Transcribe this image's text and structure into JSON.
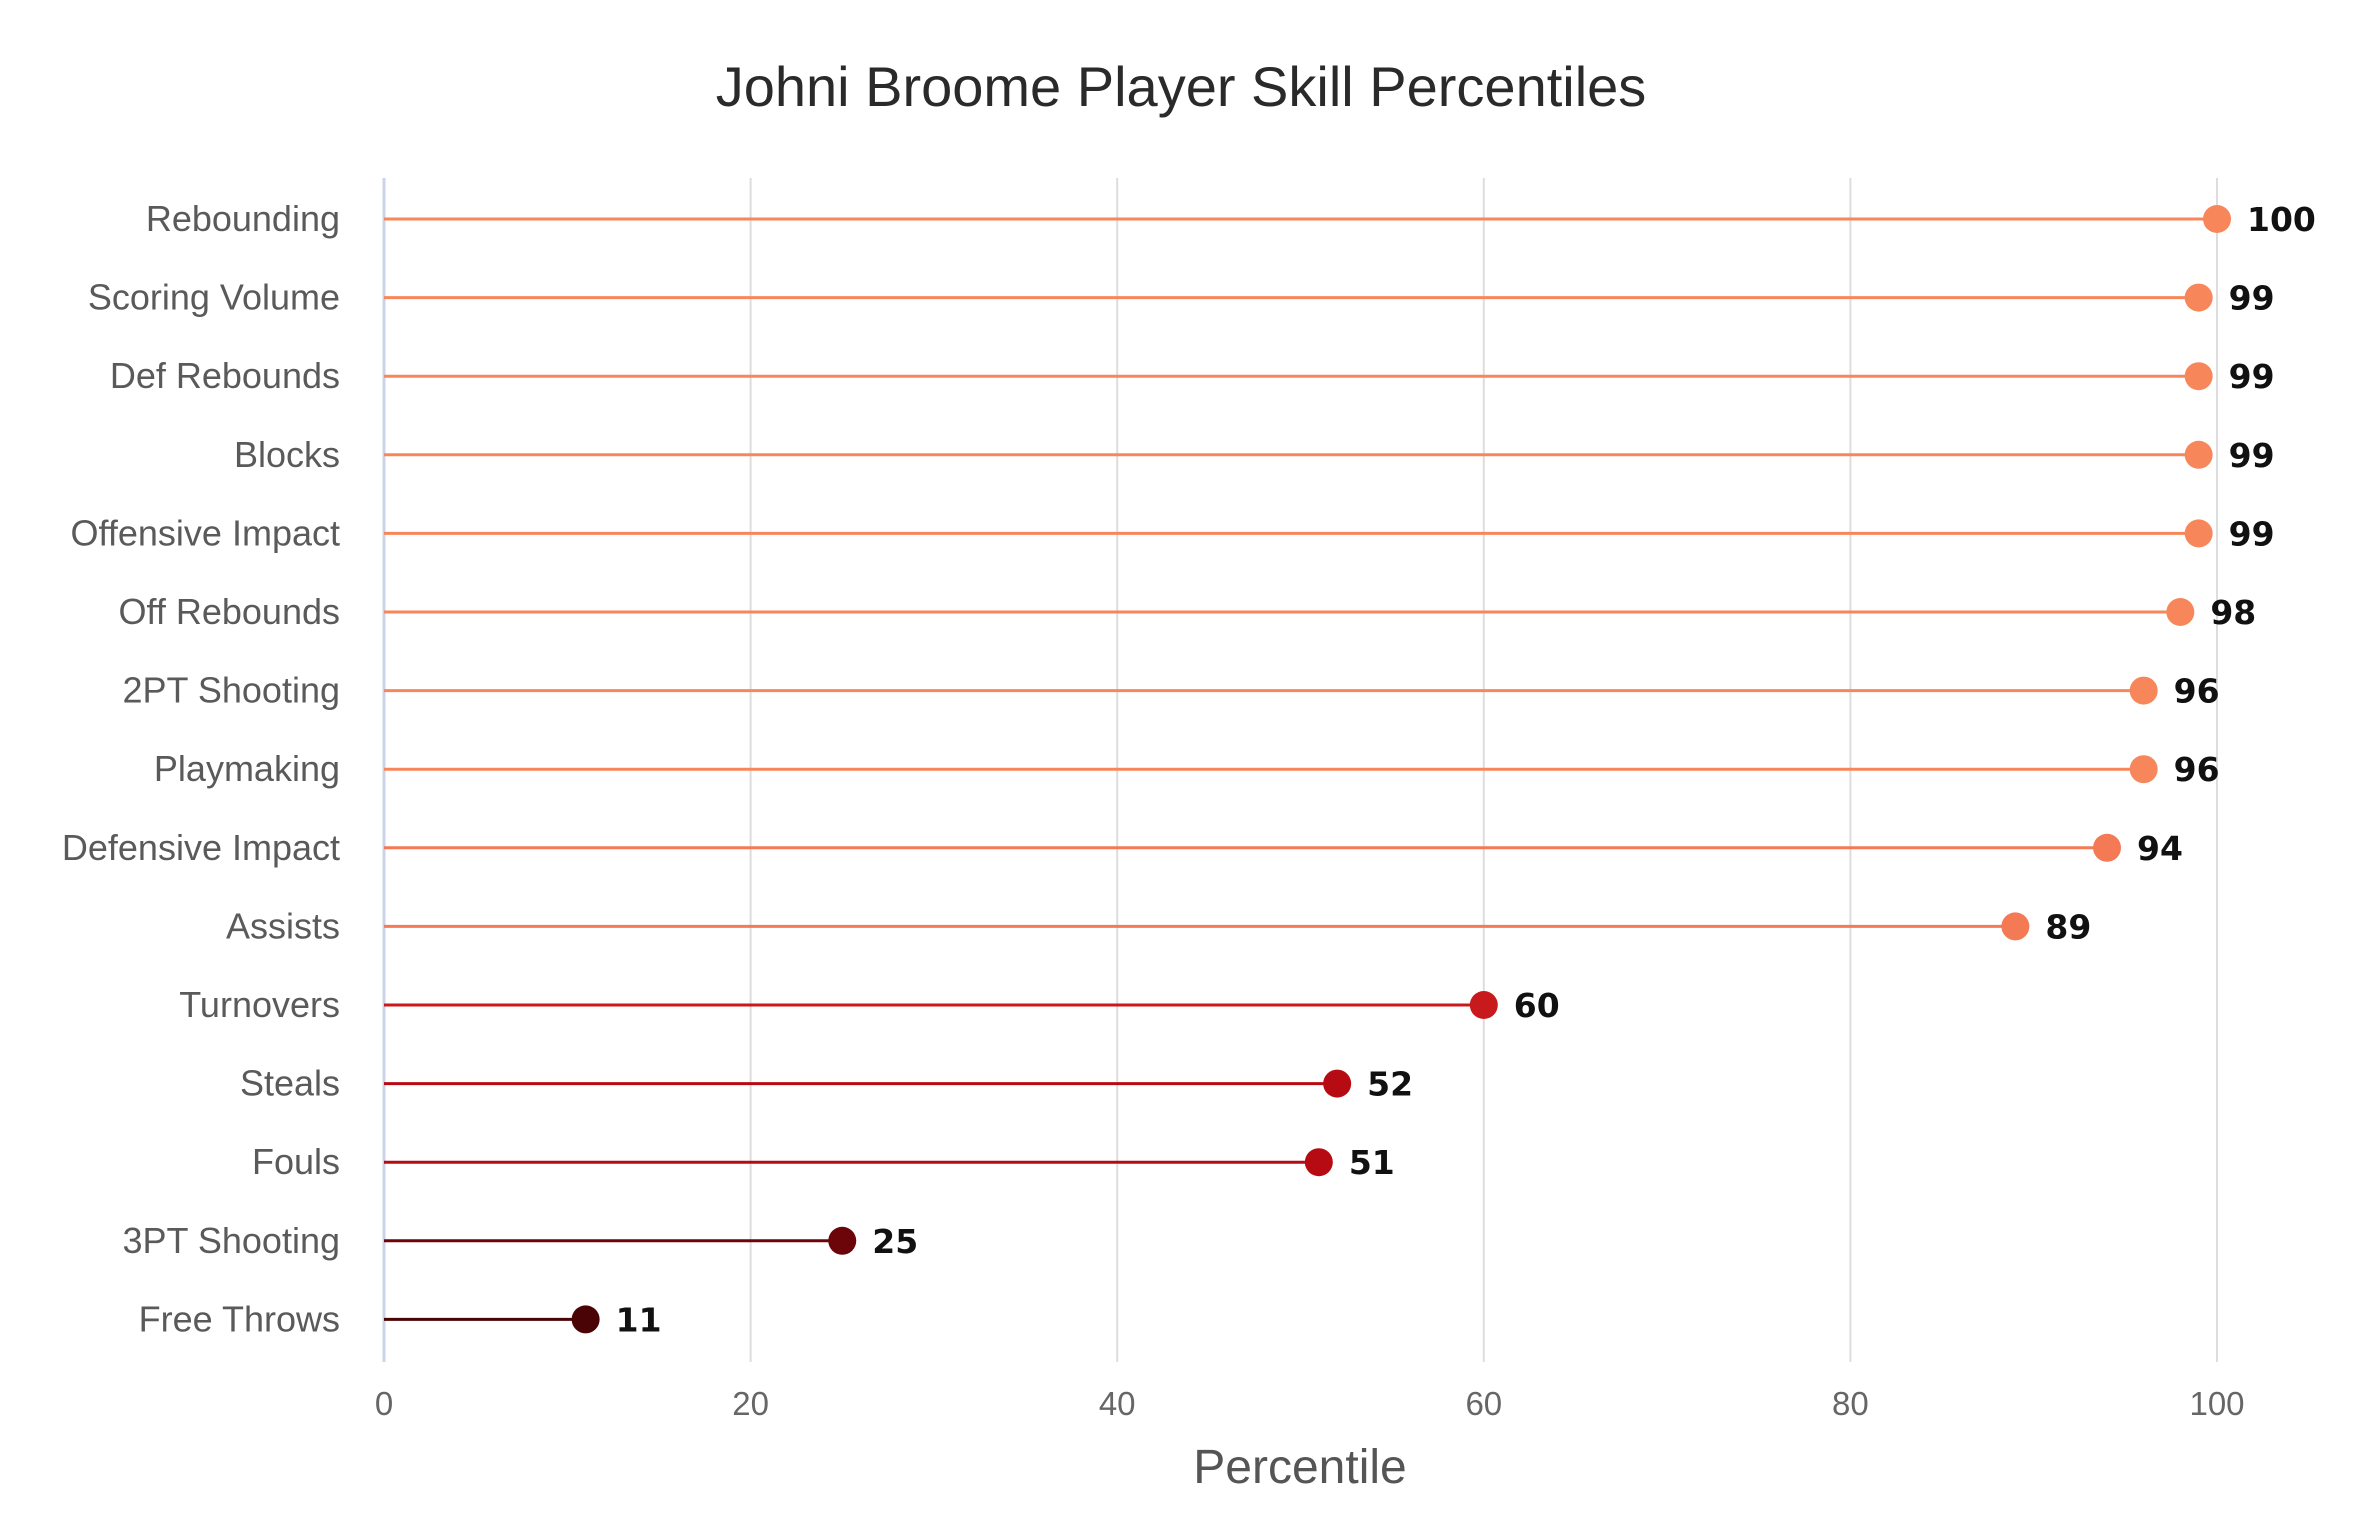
{
  "chart_data": {
    "type": "lollipop",
    "title": "Johni Broome Player Skill Percentiles",
    "xlabel": "Percentile",
    "ylabel": "",
    "xlim": [
      0,
      100
    ],
    "xticks": [
      0,
      20,
      40,
      60,
      80,
      100
    ],
    "grid": "vertical",
    "legend": "none",
    "categories": [
      "Rebounding",
      "Scoring Volume",
      "Def Rebounds",
      "Blocks",
      "Offensive Impact",
      "Off Rebounds",
      "2PT Shooting",
      "Playmaking",
      "Defensive Impact",
      "Assists",
      "Turnovers",
      "Steals",
      "Fouls",
      "3PT Shooting",
      "Free Throws"
    ],
    "values": [
      100,
      99,
      99,
      99,
      99,
      98,
      96,
      96,
      94,
      89,
      60,
      52,
      51,
      25,
      11
    ],
    "colors": [
      "#f7875a",
      "#f7875a",
      "#f7875a",
      "#f7875a",
      "#f7875a",
      "#f7875a",
      "#f7875a",
      "#f7875a",
      "#f47a55",
      "#f47a55",
      "#c8191c",
      "#b70b14",
      "#b70b14",
      "#6b0509",
      "#4a0406"
    ],
    "colors_meta": {
      "grid": "#dddddd",
      "axis_line": "#c9d3ea"
    }
  }
}
